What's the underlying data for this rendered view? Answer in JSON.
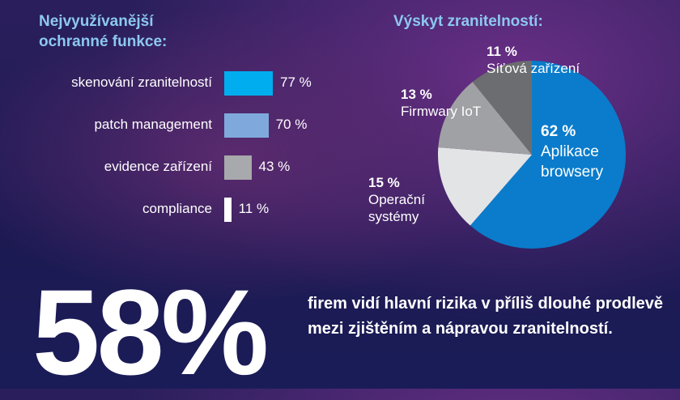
{
  "chart_data": [
    {
      "type": "bar",
      "orientation": "horizontal",
      "title": "Nejvyužívanější ochranné funkce:",
      "categories": [
        "skenování zranitelností",
        "patch management",
        "evidence zařízení",
        "compliance"
      ],
      "values": [
        77,
        70,
        43,
        11
      ],
      "labels": [
        "77 %",
        "70 %",
        "43 %",
        "11 %"
      ],
      "colors": [
        "#00aeef",
        "#7fa9dc",
        "#a7a9ac",
        "#ffffff"
      ]
    },
    {
      "type": "pie",
      "title": "Výskyt zranitelností:",
      "slices": [
        {
          "label": "Aplikace browsery",
          "value": 62,
          "value_label": "62 %",
          "color": "#0a7ccb"
        },
        {
          "label": "Operační systémy",
          "value": 15,
          "value_label": "15 %",
          "color": "#e3e4e6"
        },
        {
          "label": "Firmwary IoT",
          "value": 13,
          "value_label": "13 %",
          "color": "#a0a1a4"
        },
        {
          "label": "Síťová zařízení",
          "value": 11,
          "value_label": "11 %",
          "color": "#6c6d70"
        }
      ]
    }
  ],
  "stat": {
    "value": "58%",
    "text": "firem vidí hlavní rizika v příliš dlouhé prodlevě mezi zjištěním a nápravou zranitelností."
  }
}
